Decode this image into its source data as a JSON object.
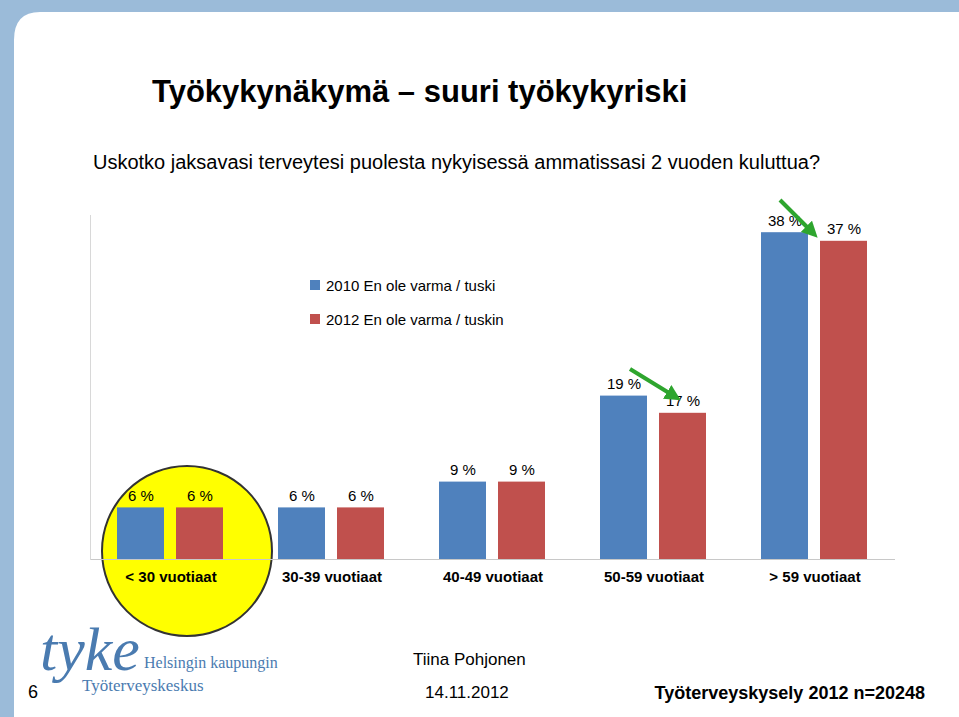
{
  "chart_data": {
    "type": "bar",
    "title": "Työkykynäkymä – suuri työkykyriski",
    "subtitle": "Uskotko jaksavasi terveytesi puolesta nykyisessä ammatissasi 2 vuoden kuluttua?",
    "categories": [
      "< 30 vuotiaat",
      "30-39 vuotiaat",
      "40-49 vuotiaat",
      "50-59 vuotiaat",
      "> 59 vuotiaat"
    ],
    "series": [
      {
        "name": "2010 En ole varma / tuski",
        "color": "#4f81bd",
        "values": [
          6,
          6,
          9,
          19,
          38
        ],
        "value_labels": [
          "6 %",
          "6 %",
          "9 %",
          "19 %",
          "38 %"
        ]
      },
      {
        "name": "2012 En ole varma / tuskin",
        "color": "#c0504d",
        "values": [
          6,
          6,
          9,
          17,
          37
        ],
        "value_labels": [
          "6 %",
          "6 %",
          "9 %",
          "17 %",
          "37 %"
        ]
      }
    ],
    "ylim": [
      0,
      40
    ],
    "grid": false,
    "legend": "top-left",
    "data_labels": true,
    "tick_labels": "x"
  },
  "page": {
    "logo": [
      "tyke",
      "Helsingin kaupungin",
      "Työterveyskeskus"
    ],
    "author": "Tiina Pohjonen",
    "date": "14.11.2012",
    "source": "Työterveyskysely 2012 n=20248",
    "page_number": 6
  }
}
